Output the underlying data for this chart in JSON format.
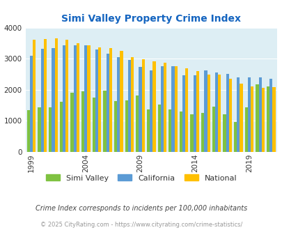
{
  "title": "Simi Valley Property Crime Index",
  "subtitle": "Crime Index corresponds to incidents per 100,000 inhabitants",
  "footer": "© 2025 CityRating.com - https://www.cityrating.com/crime-statistics/",
  "years": [
    1999,
    2000,
    2001,
    2002,
    2003,
    2004,
    2005,
    2006,
    2007,
    2008,
    2009,
    2010,
    2011,
    2012,
    2013,
    2014,
    2015,
    2016,
    2017,
    2018,
    2019,
    2020,
    2021
  ],
  "simi_valley": [
    1350,
    1430,
    1430,
    1620,
    1900,
    1950,
    1750,
    1980,
    1630,
    1650,
    1810,
    1370,
    1530,
    1370,
    1300,
    1210,
    1250,
    1460,
    1200,
    970,
    1430,
    2170,
    2100
  ],
  "california": [
    3100,
    3310,
    3340,
    3430,
    3430,
    3430,
    3300,
    3150,
    3040,
    2950,
    2730,
    2620,
    2750,
    2760,
    2470,
    2470,
    2630,
    2560,
    2510,
    2400,
    2390,
    2390,
    2360
  ],
  "national": [
    3620,
    3640,
    3650,
    3600,
    3500,
    3440,
    3370,
    3330,
    3260,
    3050,
    2990,
    2920,
    2870,
    2760,
    2680,
    2590,
    2490,
    2490,
    2360,
    2200,
    2100,
    2050,
    2090
  ],
  "bar_colors": {
    "simi_valley": "#7fc241",
    "california": "#5b9bd5",
    "national": "#ffc000"
  },
  "background_color": "#ddeef4",
  "title_color": "#1565c0",
  "ylim": [
    0,
    4000
  ],
  "yticks": [
    0,
    1000,
    2000,
    3000,
    4000
  ],
  "grid_color": "#ffffff",
  "legend_labels": [
    "Simi Valley",
    "California",
    "National"
  ],
  "subtitle_color": "#444444",
  "footer_color": "#999999",
  "xtick_years": [
    1999,
    2004,
    2009,
    2014,
    2019
  ]
}
